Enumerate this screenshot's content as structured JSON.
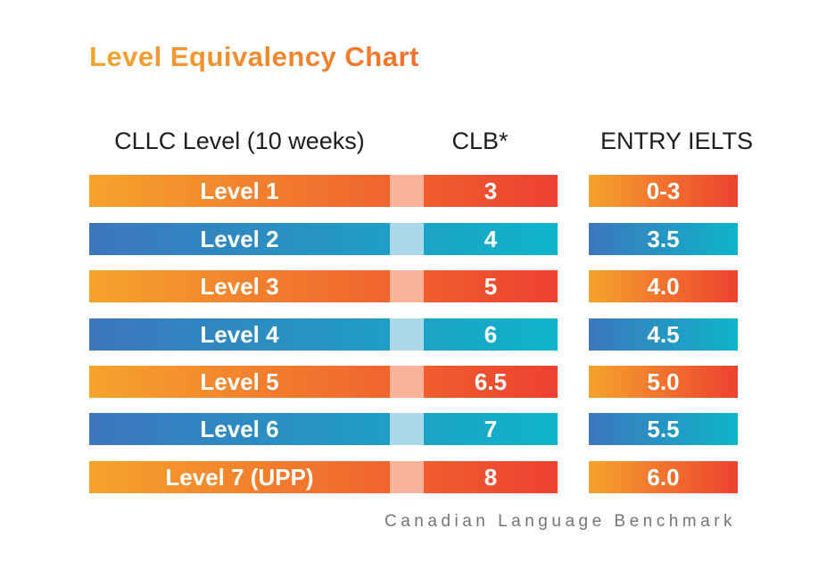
{
  "title": "Level Equivalency Chart",
  "footer": "Canadian Language Benchmark",
  "chart_data": {
    "type": "table",
    "title": "Level Equivalency Chart",
    "columns": [
      "CLLC Level (10 weeks)",
      "CLB*",
      "ENTRY IELTS"
    ],
    "rows": [
      [
        "Level 1",
        "3",
        "0-3"
      ],
      [
        "Level 2",
        "4",
        "3.5"
      ],
      [
        "Level 3",
        "5",
        "4.0"
      ],
      [
        "Level 4",
        "6",
        "4.5"
      ],
      [
        "Level 5",
        "6.5",
        "5.0"
      ],
      [
        "Level 6",
        "7",
        "5.5"
      ],
      [
        "Level 7 (UPP)",
        "8",
        "6.0"
      ]
    ],
    "row_color_themes": [
      "orange",
      "blue",
      "orange",
      "blue",
      "orange",
      "blue",
      "orange"
    ],
    "footnote": "Canadian Language Benchmark",
    "legend_position": "none",
    "grid": false
  },
  "colors": {
    "title_gradient_start": "#F4A52F",
    "title_gradient_end": "#F1702D",
    "orange_bar_gradient_start": "#F5A32C",
    "orange_bar_gradient_end": "#ED4130",
    "orange_connector": "#F8B39A",
    "blue_bar_gradient_start": "#3D76BD",
    "blue_bar_gradient_end": "#0EB5CA",
    "blue_connector": "#ABD9EA",
    "header_text": "#1E1E1E",
    "bar_text": "#FFFFFF",
    "footer_text": "#747578",
    "background": "#FFFFFF"
  }
}
